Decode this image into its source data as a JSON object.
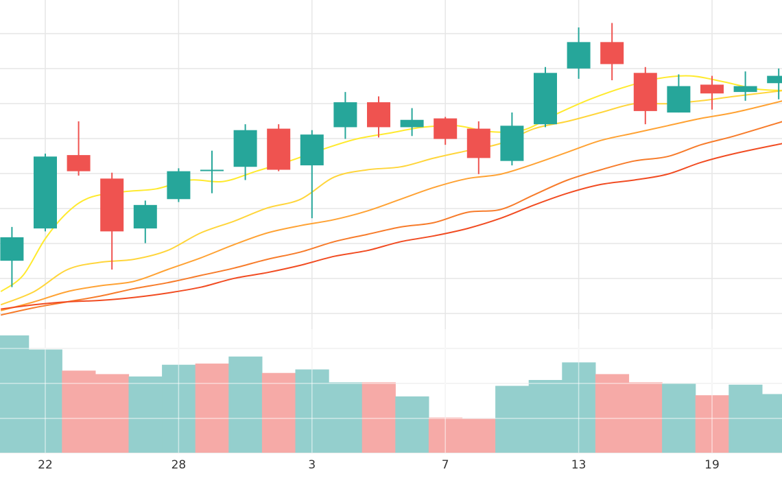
{
  "chart_data": {
    "type": "candlestick",
    "x_tick_labels": [
      {
        "day": 22,
        "label": "22"
      },
      {
        "day": 28,
        "label": "28"
      },
      {
        "day": 34,
        "label": "3"
      },
      {
        "day": 40,
        "label": "7"
      },
      {
        "day": 46,
        "label": "13"
      },
      {
        "day": 52,
        "label": "19"
      }
    ],
    "candles": [
      {
        "day": 20.5,
        "open": 19.7,
        "high": 22.0,
        "low": 17.9,
        "close": 21.3
      },
      {
        "day": 22.0,
        "open": 21.9,
        "high": 27.0,
        "low": 21.7,
        "close": 26.8
      },
      {
        "day": 23.5,
        "open": 26.9,
        "high": 29.2,
        "low": 25.5,
        "close": 25.8
      },
      {
        "day": 25.0,
        "open": 25.3,
        "high": 25.7,
        "low": 19.1,
        "close": 21.7
      },
      {
        "day": 26.5,
        "open": 21.9,
        "high": 23.8,
        "low": 20.9,
        "close": 23.5
      },
      {
        "day": 28.0,
        "open": 23.9,
        "high": 26.0,
        "low": 23.7,
        "close": 25.8
      },
      {
        "day": 29.5,
        "open": 25.9,
        "high": 27.2,
        "low": 24.3,
        "close": 25.9
      },
      {
        "day": 31.0,
        "open": 26.1,
        "high": 29.0,
        "low": 25.2,
        "close": 28.6
      },
      {
        "day": 32.5,
        "open": 28.7,
        "high": 29.0,
        "low": 25.8,
        "close": 25.9
      },
      {
        "day": 34.0,
        "open": 26.2,
        "high": 28.6,
        "low": 22.6,
        "close": 28.3
      },
      {
        "day": 35.5,
        "open": 28.8,
        "high": 31.2,
        "low": 28.0,
        "close": 30.5
      },
      {
        "day": 37.0,
        "open": 30.5,
        "high": 30.9,
        "low": 28.1,
        "close": 28.8
      },
      {
        "day": 38.5,
        "open": 28.8,
        "high": 30.1,
        "low": 28.2,
        "close": 29.3
      },
      {
        "day": 40.0,
        "open": 29.4,
        "high": 29.5,
        "low": 27.6,
        "close": 28.0
      },
      {
        "day": 41.5,
        "open": 28.7,
        "high": 29.2,
        "low": 25.6,
        "close": 26.7
      },
      {
        "day": 43.0,
        "open": 26.5,
        "high": 29.8,
        "low": 26.2,
        "close": 28.9
      },
      {
        "day": 44.5,
        "open": 29.0,
        "high": 32.9,
        "low": 28.8,
        "close": 32.5
      },
      {
        "day": 46.0,
        "open": 32.8,
        "high": 35.6,
        "low": 32.1,
        "close": 34.6
      },
      {
        "day": 47.5,
        "open": 34.6,
        "high": 35.9,
        "low": 32.0,
        "close": 33.1
      },
      {
        "day": 49.0,
        "open": 32.5,
        "high": 32.9,
        "low": 29.0,
        "close": 29.9
      },
      {
        "day": 50.5,
        "open": 29.8,
        "high": 32.4,
        "low": 29.8,
        "close": 31.6
      },
      {
        "day": 52.0,
        "open": 31.7,
        "high": 32.3,
        "low": 30.0,
        "close": 31.1
      },
      {
        "day": 53.5,
        "open": 31.2,
        "high": 32.6,
        "low": 30.6,
        "close": 31.6
      },
      {
        "day": 55.0,
        "open": 31.8,
        "high": 32.8,
        "low": 30.7,
        "close": 32.3
      }
    ],
    "moving_averages": [
      {
        "color": "#ffea2e",
        "points": [
          [
            20.0,
            17.6
          ],
          [
            21.0,
            18.7
          ],
          [
            22.0,
            21.2
          ],
          [
            23.0,
            23.0
          ],
          [
            24.0,
            24.0
          ],
          [
            25.5,
            24.4
          ],
          [
            27.0,
            24.6
          ],
          [
            28.5,
            25.2
          ],
          [
            30.0,
            25.1
          ],
          [
            31.5,
            25.8
          ],
          [
            33.0,
            26.5
          ],
          [
            34.5,
            27.3
          ],
          [
            36.0,
            28.0
          ],
          [
            37.5,
            28.4
          ],
          [
            39.0,
            28.8
          ],
          [
            40.5,
            28.9
          ],
          [
            42.0,
            28.5
          ],
          [
            43.5,
            28.6
          ],
          [
            45.0,
            29.7
          ],
          [
            46.5,
            30.7
          ],
          [
            48.0,
            31.5
          ],
          [
            49.5,
            32.1
          ],
          [
            51.0,
            32.3
          ],
          [
            52.5,
            31.9
          ],
          [
            54.0,
            31.4
          ],
          [
            55.2,
            31.3
          ]
        ]
      },
      {
        "color": "#ffd53a",
        "points": [
          [
            20.0,
            16.7
          ],
          [
            21.5,
            17.6
          ],
          [
            23.0,
            19.1
          ],
          [
            24.5,
            19.6
          ],
          [
            26.0,
            19.8
          ],
          [
            27.5,
            20.4
          ],
          [
            29.0,
            21.6
          ],
          [
            30.5,
            22.4
          ],
          [
            32.0,
            23.3
          ],
          [
            33.5,
            23.9
          ],
          [
            35.0,
            25.4
          ],
          [
            36.5,
            25.9
          ],
          [
            38.0,
            26.1
          ],
          [
            39.5,
            26.7
          ],
          [
            41.0,
            27.2
          ],
          [
            42.5,
            27.7
          ],
          [
            44.0,
            28.7
          ],
          [
            45.5,
            29.2
          ],
          [
            47.0,
            29.8
          ],
          [
            48.5,
            30.4
          ],
          [
            50.0,
            30.4
          ],
          [
            51.5,
            30.6
          ],
          [
            53.0,
            30.9
          ],
          [
            55.2,
            31.3
          ]
        ]
      },
      {
        "color": "#ffa233",
        "points": [
          [
            20.0,
            16.3
          ],
          [
            21.5,
            16.9
          ],
          [
            23.0,
            17.6
          ],
          [
            24.5,
            18.0
          ],
          [
            26.0,
            18.3
          ],
          [
            27.5,
            19.1
          ],
          [
            29.0,
            19.9
          ],
          [
            30.5,
            20.8
          ],
          [
            32.0,
            21.6
          ],
          [
            33.5,
            22.1
          ],
          [
            35.0,
            22.5
          ],
          [
            36.5,
            23.1
          ],
          [
            38.0,
            23.9
          ],
          [
            39.5,
            24.7
          ],
          [
            41.0,
            25.3
          ],
          [
            42.5,
            25.6
          ],
          [
            44.0,
            26.3
          ],
          [
            45.5,
            27.1
          ],
          [
            47.0,
            27.9
          ],
          [
            48.5,
            28.4
          ],
          [
            50.0,
            28.9
          ],
          [
            51.5,
            29.4
          ],
          [
            53.0,
            29.8
          ],
          [
            55.2,
            30.6
          ]
        ]
      },
      {
        "color": "#f77b2a",
        "points": [
          [
            20.0,
            16.0
          ],
          [
            21.5,
            16.5
          ],
          [
            23.0,
            16.9
          ],
          [
            24.5,
            17.3
          ],
          [
            26.0,
            17.8
          ],
          [
            27.5,
            18.2
          ],
          [
            29.0,
            18.7
          ],
          [
            30.5,
            19.2
          ],
          [
            32.0,
            19.8
          ],
          [
            33.5,
            20.3
          ],
          [
            35.0,
            21.0
          ],
          [
            36.5,
            21.5
          ],
          [
            38.0,
            22.0
          ],
          [
            39.5,
            22.3
          ],
          [
            41.0,
            23.0
          ],
          [
            42.5,
            23.2
          ],
          [
            44.0,
            24.2
          ],
          [
            45.5,
            25.2
          ],
          [
            47.0,
            25.9
          ],
          [
            48.5,
            26.5
          ],
          [
            50.0,
            26.8
          ],
          [
            51.5,
            27.6
          ],
          [
            53.0,
            28.2
          ],
          [
            55.2,
            29.2
          ]
        ]
      },
      {
        "color": "#f14b21",
        "points": [
          [
            20.0,
            16.4
          ],
          [
            21.5,
            16.7
          ],
          [
            23.0,
            16.9
          ],
          [
            24.5,
            17.0
          ],
          [
            26.0,
            17.2
          ],
          [
            27.5,
            17.5
          ],
          [
            29.0,
            17.9
          ],
          [
            30.5,
            18.5
          ],
          [
            32.0,
            18.9
          ],
          [
            33.5,
            19.4
          ],
          [
            35.0,
            20.0
          ],
          [
            36.5,
            20.4
          ],
          [
            38.0,
            21.0
          ],
          [
            39.5,
            21.4
          ],
          [
            41.0,
            21.9
          ],
          [
            42.5,
            22.6
          ],
          [
            44.0,
            23.5
          ],
          [
            45.5,
            24.3
          ],
          [
            47.0,
            24.9
          ],
          [
            48.5,
            25.2
          ],
          [
            50.0,
            25.6
          ],
          [
            51.5,
            26.4
          ],
          [
            53.0,
            27.0
          ],
          [
            55.2,
            27.7
          ]
        ]
      }
    ],
    "volume": [
      {
        "day": 20.5,
        "value": 1.0,
        "direction": "up"
      },
      {
        "day": 22.0,
        "value": 0.88,
        "direction": "up"
      },
      {
        "day": 23.5,
        "value": 0.7,
        "direction": "down"
      },
      {
        "day": 25.0,
        "value": 0.67,
        "direction": "down"
      },
      {
        "day": 26.5,
        "value": 0.65,
        "direction": "up"
      },
      {
        "day": 28.0,
        "value": 0.75,
        "direction": "up"
      },
      {
        "day": 29.5,
        "value": 0.76,
        "direction": "down"
      },
      {
        "day": 31.0,
        "value": 0.82,
        "direction": "up"
      },
      {
        "day": 32.5,
        "value": 0.68,
        "direction": "down"
      },
      {
        "day": 34.0,
        "value": 0.71,
        "direction": "up"
      },
      {
        "day": 35.5,
        "value": 0.6,
        "direction": "up"
      },
      {
        "day": 37.0,
        "value": 0.6,
        "direction": "down"
      },
      {
        "day": 38.5,
        "value": 0.48,
        "direction": "up"
      },
      {
        "day": 40.0,
        "value": 0.3,
        "direction": "down"
      },
      {
        "day": 41.5,
        "value": 0.29,
        "direction": "down"
      },
      {
        "day": 43.0,
        "value": 0.57,
        "direction": "up"
      },
      {
        "day": 44.5,
        "value": 0.62,
        "direction": "up"
      },
      {
        "day": 46.0,
        "value": 0.77,
        "direction": "up"
      },
      {
        "day": 47.5,
        "value": 0.67,
        "direction": "down"
      },
      {
        "day": 49.0,
        "value": 0.6,
        "direction": "down"
      },
      {
        "day": 50.5,
        "value": 0.59,
        "direction": "up"
      },
      {
        "day": 52.0,
        "value": 0.49,
        "direction": "down"
      },
      {
        "day": 53.5,
        "value": 0.58,
        "direction": "up"
      },
      {
        "day": 55.0,
        "value": 0.5,
        "direction": "up"
      }
    ],
    "colors": {
      "up": "#26a69a",
      "down": "#ef5350",
      "volume_up": "#94cfcd",
      "volume_down": "#f6aaa7",
      "grid": "#e6e6e6",
      "tick_text": "#333333"
    },
    "grid": true,
    "price_range": [
      15.5,
      37.0
    ],
    "day_range": [
      19.5,
      55.2
    ],
    "xlabel": "",
    "ylabel": ""
  }
}
